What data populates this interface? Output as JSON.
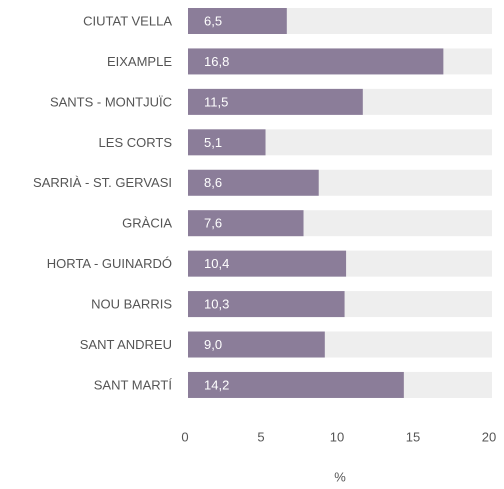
{
  "chart_data": {
    "type": "bar",
    "orientation": "horizontal",
    "categories": [
      "CIUTAT VELLA",
      "EIXAMPLE",
      "SANTS - MONTJUÏC",
      "LES CORTS",
      "SARRIÀ - ST. GERVASI",
      "GRÀCIA",
      "HORTA - GUINARDÓ",
      "NOU BARRIS",
      "SANT ANDREU",
      "SANT MARTÍ"
    ],
    "values": [
      6.5,
      16.8,
      11.5,
      5.1,
      8.6,
      7.6,
      10.4,
      10.3,
      9.0,
      14.2
    ],
    "value_labels": [
      "6,5",
      "16,8",
      "11,5",
      "5,1",
      "8,6",
      "7,6",
      "10,4",
      "10,3",
      "9,0",
      "14,2"
    ],
    "color": "#8b7d99",
    "track_color": "#eeeeee",
    "xlim": [
      0,
      20
    ],
    "xticks": [
      0,
      5,
      10,
      15,
      20
    ],
    "xlabel": "%",
    "grid": false
  }
}
